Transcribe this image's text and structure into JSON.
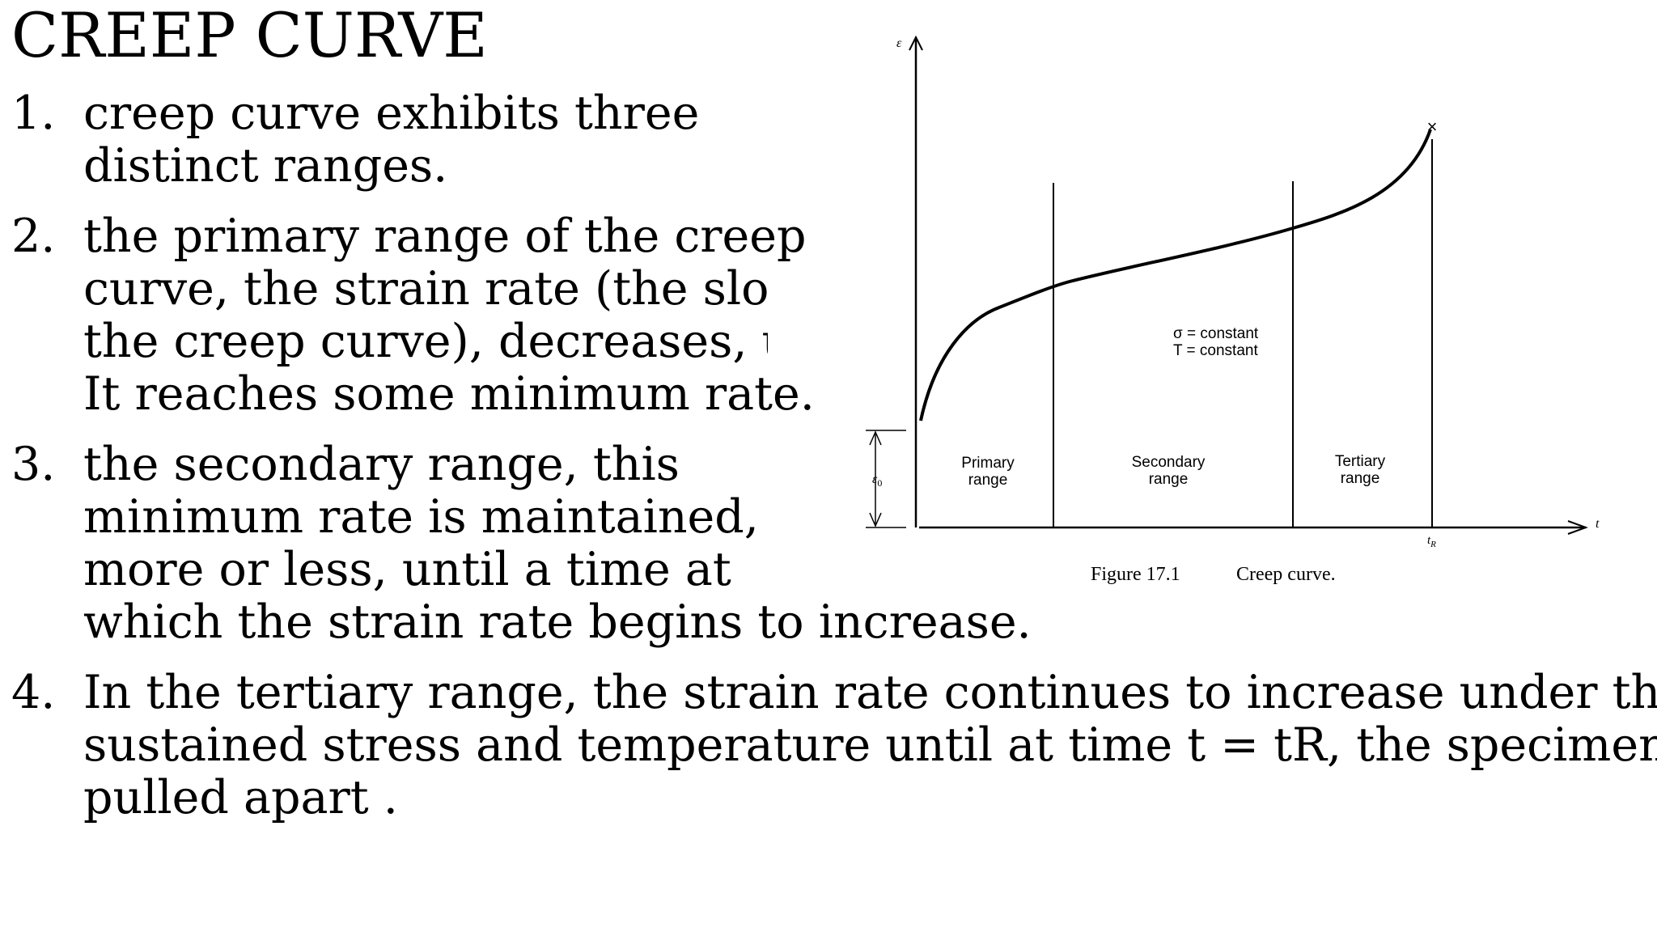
{
  "slide": {
    "title": "CREEP CURVE",
    "items": [
      {
        "number": "1.",
        "lines": [
          "creep curve exhibits three",
          "distinct ranges."
        ]
      },
      {
        "number": "2.",
        "lines": [
          "the primary range of the creep",
          "curve, the strain rate (the slope of",
          " the creep curve), decreases, until",
          "It reaches some minimum rate."
        ]
      },
      {
        "number": "3.",
        "lines": [
          "the secondary range, this",
          "minimum rate is maintained,",
          "more or less, until a time at",
          "which the strain rate begins to increase."
        ]
      },
      {
        "number": "4.",
        "lines": [
          "In the tertiary range, the strain rate continues to increase under the",
          "sustained stress and temperature until at time t = tR, the specimen is",
          "pulled apart ."
        ]
      }
    ]
  },
  "figure": {
    "y_axis_symbol": "ε",
    "x_axis_symbol": "t",
    "strain_offset_label": "ε",
    "strain_offset_subscript": "0",
    "rupture_time_label": "t",
    "rupture_time_subscript": "R",
    "condition_stress": "σ = constant",
    "condition_temperature": "T = constant",
    "range_labels": [
      {
        "line1": "Primary",
        "line2": "range"
      },
      {
        "line1": "Secondary",
        "line2": "range"
      },
      {
        "line1": "Tertiary",
        "line2": "range"
      }
    ],
    "fracture_marker": "×",
    "caption_number": "Figure 17.1",
    "caption_text": "Creep curve."
  }
}
